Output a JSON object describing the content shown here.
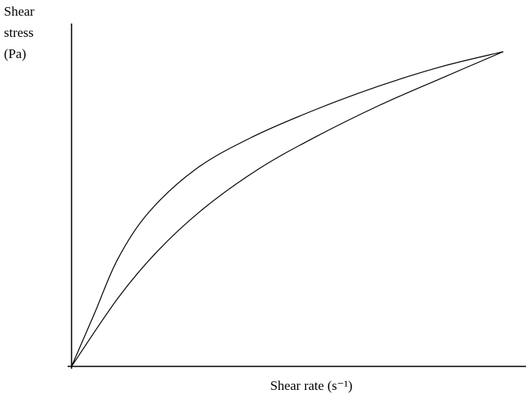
{
  "chart_data": {
    "type": "line",
    "y_label_lines": [
      "Shear",
      "stress",
      "(Pa)"
    ],
    "x_label": "Shear rate (s⁻¹)",
    "xlim": [
      0,
      100
    ],
    "ylim": [
      0,
      100
    ],
    "series": [
      {
        "color": "#000000",
        "x": [
          0,
          5.0,
          10.2,
          17.1,
          27.5,
          39.6,
          53.5,
          67.5,
          81.3,
          95.0
        ],
        "values": [
          0,
          15.3,
          31.4,
          45.1,
          57.7,
          66.8,
          74.8,
          81.7,
          87.4,
          91.8
        ]
      },
      {
        "color": "#000000",
        "x": [
          0,
          10.2,
          18.9,
          29.2,
          41.3,
          53.5,
          67.5,
          81.3,
          95.0
        ],
        "values": [
          0,
          19.9,
          33.6,
          46.2,
          57.7,
          66.8,
          76.0,
          84.0,
          91.8
        ]
      }
    ]
  }
}
